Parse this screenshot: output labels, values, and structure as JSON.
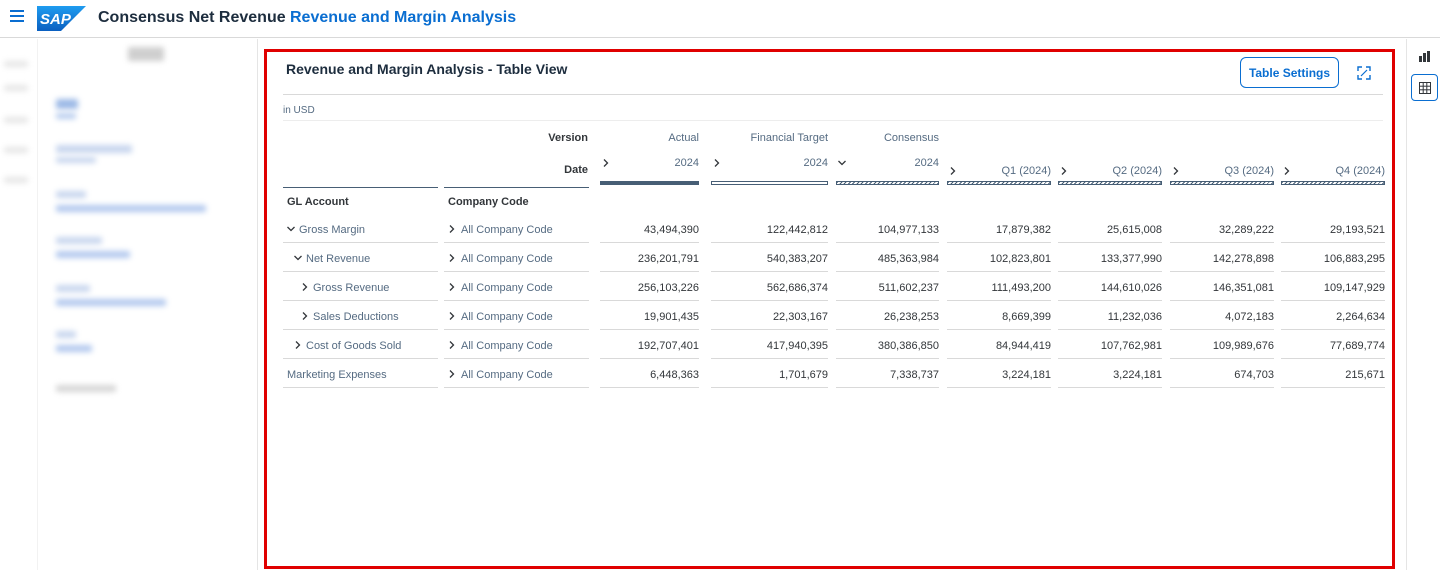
{
  "shell": {
    "logo_text": "SAP",
    "app_title": "Consensus Net Revenue",
    "page_title": "Revenue and Margin Analysis"
  },
  "colors": {
    "brand": "#0a6ed1",
    "highlight_border": "#e00000",
    "bar": "#475e75"
  },
  "panel": {
    "title": "Revenue and Margin Analysis - Table View",
    "settings_label": "Table Settings",
    "unit": "in USD"
  },
  "table": {
    "version_label": "Version",
    "date_label": "Date",
    "gl_header": "GL Account",
    "company_header": "Company Code",
    "columns": [
      {
        "version": "Actual",
        "date": "2024",
        "style": "solid",
        "expand": "collapsed"
      },
      {
        "version": "Financial Target",
        "date": "2024",
        "style": "outline",
        "expand": "collapsed"
      },
      {
        "version": "Consensus",
        "date": "2024",
        "style": "hatch",
        "expand": "expanded"
      },
      {
        "version": "",
        "date": "Q1 (2024)",
        "style": "hatch",
        "expand": "collapsed"
      },
      {
        "version": "",
        "date": "Q2 (2024)",
        "style": "hatch",
        "expand": "collapsed"
      },
      {
        "version": "",
        "date": "Q3 (2024)",
        "style": "hatch",
        "expand": "collapsed"
      },
      {
        "version": "",
        "date": "Q4 (2024)",
        "style": "hatch",
        "expand": "collapsed"
      }
    ],
    "rows": [
      {
        "account": "Gross Margin",
        "indent": 0,
        "expand": "expanded",
        "company": "All Company Code",
        "values": [
          "43,494,390",
          "122,442,812",
          "104,977,133",
          "17,879,382",
          "25,615,008",
          "32,289,222",
          "29,193,521"
        ]
      },
      {
        "account": "Net Revenue",
        "indent": 1,
        "expand": "expanded",
        "company": "All Company Code",
        "values": [
          "236,201,791",
          "540,383,207",
          "485,363,984",
          "102,823,801",
          "133,377,990",
          "142,278,898",
          "106,883,295"
        ]
      },
      {
        "account": "Gross Revenue",
        "indent": 2,
        "expand": "collapsed",
        "company": "All Company Code",
        "values": [
          "256,103,226",
          "562,686,374",
          "511,602,237",
          "111,493,200",
          "144,610,026",
          "146,351,081",
          "109,147,929"
        ]
      },
      {
        "account": "Sales Deductions",
        "indent": 2,
        "expand": "collapsed",
        "company": "All Company Code",
        "values": [
          "19,901,435",
          "22,303,167",
          "26,238,253",
          "8,669,399",
          "11,232,036",
          "4,072,183",
          "2,264,634"
        ]
      },
      {
        "account": "Cost of Goods Sold",
        "indent": 1,
        "expand": "collapsed",
        "company": "All Company Code",
        "values": [
          "192,707,401",
          "417,940,395",
          "380,386,850",
          "84,944,419",
          "107,762,981",
          "109,989,676",
          "77,689,774"
        ]
      },
      {
        "account": "Marketing Expenses",
        "indent": 0,
        "expand": "none",
        "company": "All Company Code",
        "values": [
          "6,448,363",
          "1,701,679",
          "7,338,737",
          "3,224,181",
          "3,224,181",
          "674,703",
          "215,671"
        ]
      }
    ]
  }
}
